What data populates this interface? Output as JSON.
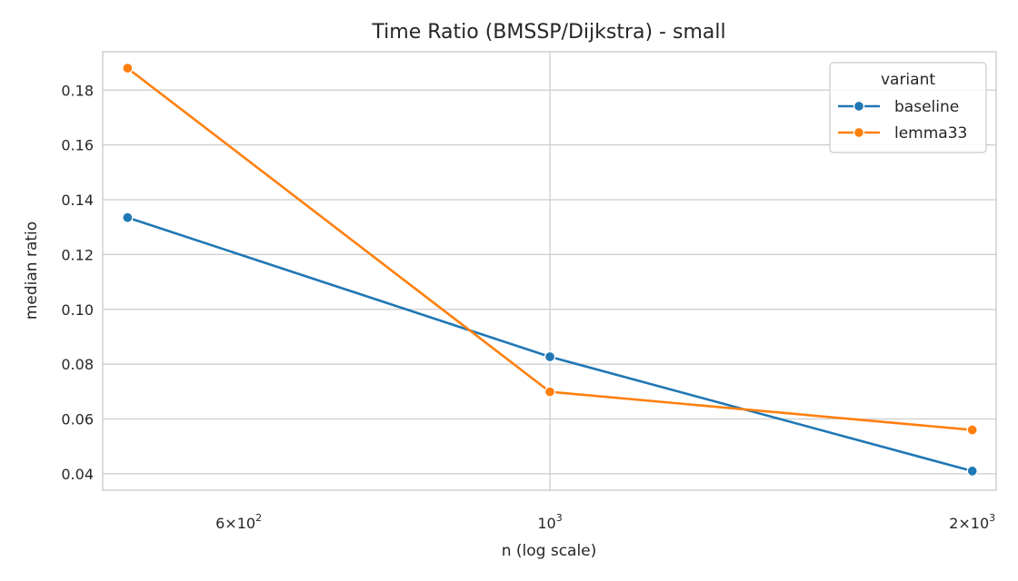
{
  "chart_data": {
    "type": "line",
    "title": "Time Ratio (BMSSP/Dijkstra) - small",
    "xlabel": "n (log scale)",
    "ylabel": "median ratio",
    "x_scale": "log",
    "x": [
      500,
      1000,
      2000
    ],
    "xlim": [
      480,
      2080
    ],
    "ylim": [
      0.034,
      0.194
    ],
    "x_ticks": [
      {
        "value": 600,
        "base": "6×10",
        "exp": "2"
      },
      {
        "value": 1000,
        "base": "10",
        "exp": "3"
      },
      {
        "value": 2000,
        "base": "2×10",
        "exp": "3"
      }
    ],
    "y_ticks": [
      0.04,
      0.06,
      0.08,
      0.1,
      0.12,
      0.14,
      0.16,
      0.18
    ],
    "y_tick_labels": [
      "0.04",
      "0.06",
      "0.08",
      "0.10",
      "0.12",
      "0.14",
      "0.16",
      "0.18"
    ],
    "grid": true,
    "legend": {
      "title": "variant",
      "placement": "top-right"
    },
    "series": [
      {
        "name": "baseline",
        "color": "#1f77b4",
        "values": [
          0.1335,
          0.0827,
          0.041
        ]
      },
      {
        "name": "lemma33",
        "color": "#ff7f0e",
        "values": [
          0.188,
          0.0699,
          0.056
        ]
      }
    ]
  }
}
